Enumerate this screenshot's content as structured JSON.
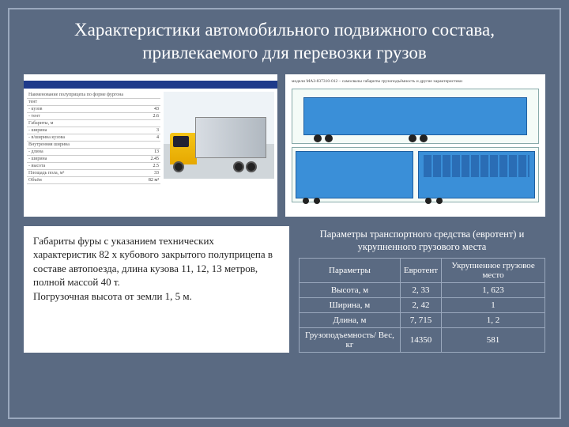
{
  "title": "Характеристики автомобильного подвижного состава, привлекаемого для перевозки грузов",
  "left_spec": {
    "rows": [
      {
        "k": "Наименование полуприцепа по форме фургона",
        "v": ""
      },
      {
        "k": "тент",
        "v": ""
      },
      {
        "k": "- кузов",
        "v": "43"
      },
      {
        "k": "- тент",
        "v": "2.6"
      },
      {
        "k": "Габариты, м",
        "v": ""
      },
      {
        "k": "- ширина",
        "v": "3"
      },
      {
        "k": "- в/ширина кузова",
        "v": "4"
      },
      {
        "k": "Внутренняя ширина",
        "v": ""
      },
      {
        "k": "- длина",
        "v": "13"
      },
      {
        "k": "- ширина",
        "v": "2.45"
      },
      {
        "k": "- высота",
        "v": "2.5"
      },
      {
        "k": "Площадь пола, м²",
        "v": "33"
      },
      {
        "k": "Объём",
        "v": "82 м³"
      }
    ]
  },
  "truck_colors": {
    "cab": "#f5c518",
    "trailer": "#c3c9cf",
    "wheel": "#222"
  },
  "right_header": "модели МАЗ-837310-012 – самосвалы габариты грузоподъёмность и другие характеристики",
  "diagram": {
    "side_color": "#3a8fd8",
    "back_color": "#3a8fd8",
    "dims": {
      "length": "7715",
      "width": "2420",
      "height": "2330"
    }
  },
  "description": "Габариты фуры с указанием технических характеристик 82 х кубового закрытого полуприцепа  в составе автопоезда, длина кузова 11, 12, 13 метров, полной массой 40 т.\nПогрузочная высота от земли 1, 5 м.",
  "params": {
    "caption": "Параметры транспортного средства (евротент) и укрупненного грузового места",
    "columns": [
      "Параметры",
      "Евротент",
      "Укрупненное грузовое место"
    ],
    "rows": [
      [
        "Высота, м",
        "2, 33",
        "1, 623"
      ],
      [
        "Ширина, м",
        "2, 42",
        "1"
      ],
      [
        "Длина, м",
        "7, 715",
        "1, 2"
      ],
      [
        "Грузоподъемность/ Вес, кг",
        "14350",
        "581"
      ]
    ]
  }
}
